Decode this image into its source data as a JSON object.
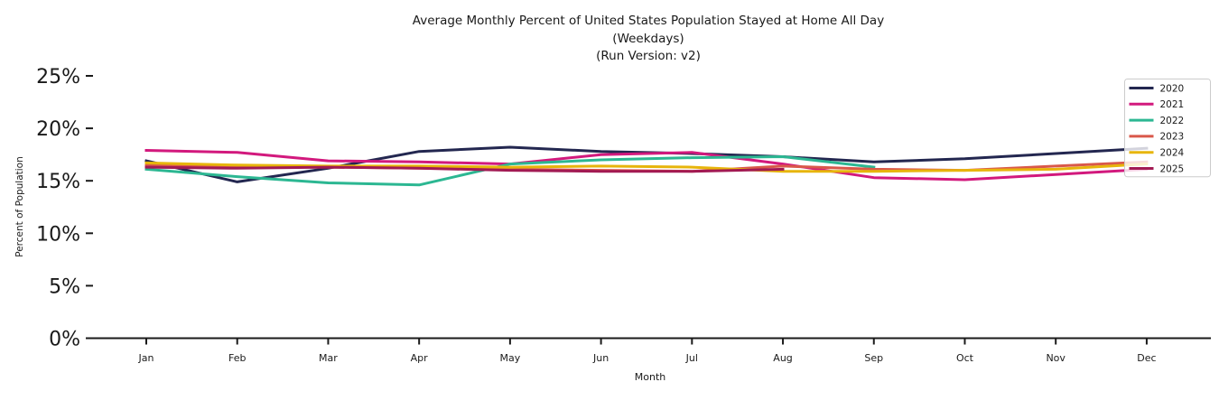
{
  "chart_data": {
    "type": "line",
    "title": {
      "line1": "Average Monthly Percent of United States Population Stayed at Home All Day",
      "line2": "(Weekdays)",
      "line3": "(Run Version: v2)"
    },
    "xlabel": "Month",
    "ylabel": "Percent of Population",
    "categories": [
      "Jan",
      "Feb",
      "Mar",
      "Apr",
      "May",
      "Jun",
      "Jul",
      "Aug",
      "Sep",
      "Oct",
      "Nov",
      "Dec"
    ],
    "yticks": {
      "values": [
        0,
        5,
        10,
        15,
        20,
        25
      ],
      "labels": [
        "0%",
        "5%",
        "10%",
        "15%",
        "20%",
        "25%"
      ]
    },
    "ylim": [
      0,
      26.5
    ],
    "grid": false,
    "legend_position": "upper right",
    "series": [
      {
        "name": "2020",
        "color": "#232750",
        "values": [
          16.9,
          14.9,
          16.2,
          17.8,
          18.2,
          17.8,
          17.6,
          17.3,
          16.8,
          17.1,
          17.6,
          18.1
        ]
      },
      {
        "name": "2021",
        "color": "#d2197d",
        "values": [
          17.9,
          17.7,
          16.9,
          16.8,
          16.6,
          17.5,
          17.7,
          16.6,
          15.3,
          15.1,
          15.6,
          16.1
        ]
      },
      {
        "name": "2022",
        "color": "#2cb792",
        "values": [
          16.1,
          15.4,
          14.8,
          14.6,
          16.6,
          17.0,
          17.2,
          17.3,
          16.3
        ]
      },
      {
        "name": "2023",
        "color": "#d9584a",
        "values": [
          16.5,
          16.3,
          16.3,
          16.2,
          16.1,
          16.0,
          15.9,
          16.4,
          16.1,
          16.0,
          16.4,
          16.8
        ]
      },
      {
        "name": "2024",
        "color": "#e7b50c",
        "values": [
          16.7,
          16.5,
          16.4,
          16.4,
          16.3,
          16.4,
          16.3,
          15.9,
          15.9,
          16.0,
          16.1,
          16.6
        ]
      },
      {
        "name": "2025",
        "color": "#a21a53",
        "values": [
          16.3,
          16.2,
          16.3,
          16.2,
          16.0,
          15.9,
          15.9,
          16.1
        ]
      }
    ]
  }
}
